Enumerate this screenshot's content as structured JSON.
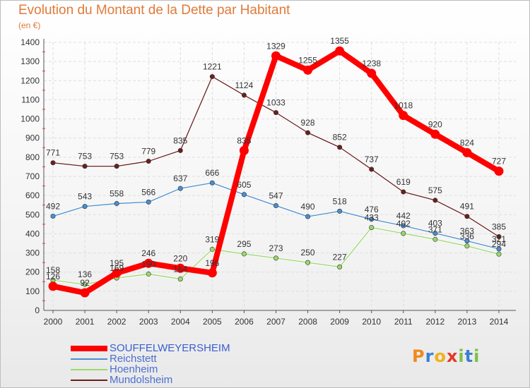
{
  "title": "Evolution du Montant de la Dette par Habitant",
  "subtitle": "(en €)",
  "logo": {
    "letters": [
      "P",
      "r",
      "o",
      "x",
      "i",
      "t",
      "i"
    ],
    "colors": [
      "#f08a1c",
      "#3a7fd5",
      "#f0b21c",
      "#e23a2a",
      "#7cc242",
      "#3a7fd5",
      "#7cc242"
    ]
  },
  "chart_data": {
    "type": "line",
    "x": [
      "2000",
      "2001",
      "2002",
      "2003",
      "2004",
      "2005",
      "2006",
      "2007",
      "2008",
      "2009",
      "2010",
      "2011",
      "2012",
      "2013",
      "2014"
    ],
    "ylim": [
      0,
      1400
    ],
    "yticks": [
      "0",
      "100",
      "200",
      "300",
      "400",
      "500",
      "600",
      "700",
      "800",
      "900",
      "1000",
      "1100",
      "1200",
      "1300",
      "1400"
    ],
    "grid": true,
    "legend_position": "bottom-left",
    "series": [
      {
        "name": "Mundolsheim",
        "color": "#6b1f1f",
        "values": [
          771,
          753,
          753,
          779,
          835,
          1221,
          1124,
          1033,
          928,
          852,
          737,
          619,
          575,
          491,
          385
        ],
        "labels": [
          "771",
          "753",
          "753",
          "779",
          "835",
          "1221",
          "1124",
          "1033",
          "928",
          "852",
          "737",
          "619",
          "575",
          "491",
          "385"
        ]
      },
      {
        "name": "Reichstett",
        "color": "#4a8fd0",
        "values": [
          492,
          543,
          558,
          566,
          637,
          666,
          605,
          547,
          490,
          518,
          476,
          442,
          403,
          363,
          321
        ],
        "labels": [
          "492",
          "543",
          "558",
          "566",
          "637",
          "666",
          "605",
          "547",
          "490",
          "518",
          "476",
          "442",
          "403",
          "363",
          "321"
        ]
      },
      {
        "name": "Hoenheim",
        "color": "#9bd86b",
        "values": [
          158,
          136,
          169,
          190,
          164,
          319,
          295,
          273,
          250,
          227,
          433,
          402,
          371,
          336,
          294
        ],
        "labels": [
          "158",
          "136",
          "169",
          "190",
          "164",
          "319",
          "295",
          "273",
          "250",
          "227",
          "433",
          "402",
          "371",
          "336",
          "294"
        ]
      },
      {
        "name": "SOUFFELWEYERSHEIM",
        "color": "#ff0000",
        "values": [
          126,
          92,
          195,
          246,
          220,
          196,
          835,
          1329,
          1255,
          1355,
          1238,
          1018,
          920,
          824,
          727
        ],
        "labels": [
          "126",
          "92",
          "195",
          "246",
          "220",
          "196",
          "835",
          "1329",
          "1255",
          "1355",
          "1238",
          "1018",
          "920",
          "824",
          "727"
        ]
      }
    ],
    "legend_order": [
      {
        "name": "SOUFFELWEYERSHEIM",
        "color": "#ff0000",
        "thick": true
      },
      {
        "name": "Reichstett",
        "color": "#4a8fd0",
        "thick": false
      },
      {
        "name": "Hoenheim",
        "color": "#9bd86b",
        "thick": false
      },
      {
        "name": "Mundolsheim",
        "color": "#6b1f1f",
        "thick": false
      }
    ]
  }
}
